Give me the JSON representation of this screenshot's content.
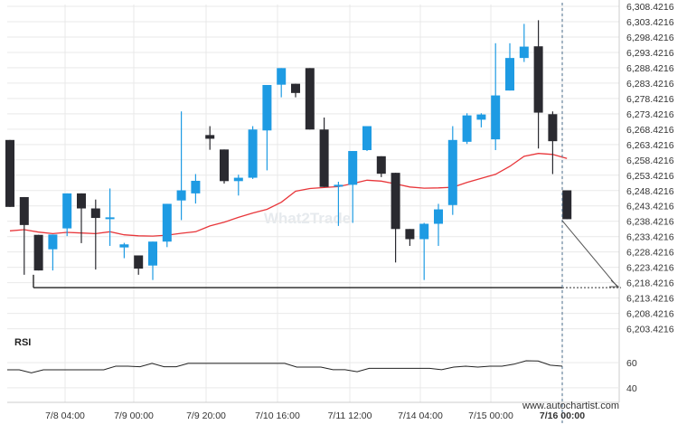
{
  "chart_data": {
    "type": "candlestick",
    "price_axis": {
      "ticks": [
        "6,308.4216",
        "6,303.4216",
        "6,298.4216",
        "6,293.4216",
        "6,288.4216",
        "6,283.4216",
        "6,278.4216",
        "6,273.4216",
        "6,268.4216",
        "6,263.4216",
        "6,258.4216",
        "6,253.4216",
        "6,248.4216",
        "6,243.4216",
        "6,238.4216",
        "6,233.4216",
        "6,228.4216",
        "6,223.4216",
        "6,218.4216",
        "6,213.4216",
        "6,208.4216",
        "6,203.4216"
      ],
      "range": [
        6200.5,
        6309.4
      ]
    },
    "time_axis": {
      "ticks": [
        "7/8 04:00",
        "7/9 00:00",
        "7/9 20:00",
        "7/10 16:00",
        "7/11 12:00",
        "7/14 04:00",
        "7/15 00:00",
        "7/16 00:00"
      ]
    },
    "colors": {
      "up": "#1e9be3",
      "down": "#2a2a30",
      "ma": "#e8363a",
      "support": "#333333",
      "rsi": "#222222",
      "grid": "#e9e9e9"
    },
    "candles": [
      {
        "o": 6264.9,
        "h": 6264.9,
        "l": 6243.1,
        "c": 6243.1
      },
      {
        "o": 6246.3,
        "h": 6246.3,
        "l": 6221.0,
        "c": 6237.2
      },
      {
        "o": 6234.0,
        "h": 6234.0,
        "l": 6222.4,
        "c": 6222.4
      },
      {
        "o": 6229.3,
        "h": 6234.1,
        "l": 6222.4,
        "c": 6234.1
      },
      {
        "o": 6236.1,
        "h": 6247.5,
        "l": 6233.6,
        "c": 6247.5
      },
      {
        "o": 6247.5,
        "h": 6247.5,
        "l": 6231.3,
        "c": 6242.6
      },
      {
        "o": 6242.6,
        "h": 6245.5,
        "l": 6222.7,
        "c": 6239.5
      },
      {
        "o": 6239.6,
        "h": 6249.1,
        "l": 6230.4,
        "c": 6239.7
      },
      {
        "o": 6229.9,
        "h": 6231.4,
        "l": 6226.4,
        "c": 6230.9
      },
      {
        "o": 6227.3,
        "h": 6227.3,
        "l": 6221.0,
        "c": 6223.0
      },
      {
        "o": 6224.0,
        "h": 6231.8,
        "l": 6219.3,
        "c": 6231.8
      },
      {
        "o": 6231.8,
        "h": 6244.1,
        "l": 6230.0,
        "c": 6244.1
      },
      {
        "o": 6245.2,
        "h": 6274.2,
        "l": 6238.8,
        "c": 6248.5
      },
      {
        "o": 6247.5,
        "h": 6253.8,
        "l": 6244.2,
        "c": 6251.6
      },
      {
        "o": 6266.5,
        "h": 6269.4,
        "l": 6261.7,
        "c": 6265.3
      },
      {
        "o": 6261.8,
        "h": 6261.8,
        "l": 6250.7,
        "c": 6251.5
      },
      {
        "o": 6251.5,
        "h": 6253.6,
        "l": 6246.8,
        "c": 6252.6
      },
      {
        "o": 6252.6,
        "h": 6269.4,
        "l": 6252.2,
        "c": 6268.3
      },
      {
        "o": 6268.0,
        "h": 6282.8,
        "l": 6255.0,
        "c": 6282.8
      },
      {
        "o": 6282.9,
        "h": 6288.3,
        "l": 6278.8,
        "c": 6288.3
      },
      {
        "o": 6283.2,
        "h": 6283.2,
        "l": 6278.8,
        "c": 6280.2
      },
      {
        "o": 6288.3,
        "h": 6288.3,
        "l": 6268.3,
        "c": 6268.3
      },
      {
        "o": 6268.3,
        "h": 6272.2,
        "l": 6249.6,
        "c": 6249.6
      },
      {
        "o": 6249.7,
        "h": 6251.3,
        "l": 6236.9,
        "c": 6250.3
      },
      {
        "o": 6250.3,
        "h": 6261.3,
        "l": 6237.9,
        "c": 6261.3
      },
      {
        "o": 6261.6,
        "h": 6269.4,
        "l": 6261.3,
        "c": 6269.4
      },
      {
        "o": 6259.6,
        "h": 6259.6,
        "l": 6252.8,
        "c": 6253.9
      },
      {
        "o": 6254.2,
        "h": 6254.2,
        "l": 6225.0,
        "c": 6235.9
      },
      {
        "o": 6235.9,
        "h": 6235.9,
        "l": 6230.4,
        "c": 6232.6
      },
      {
        "o": 6232.6,
        "h": 6237.9,
        "l": 6219.3,
        "c": 6237.6
      },
      {
        "o": 6237.6,
        "h": 6244.1,
        "l": 6230.4,
        "c": 6242.3
      },
      {
        "o": 6243.7,
        "h": 6269.4,
        "l": 6240.5,
        "c": 6264.9
      },
      {
        "o": 6264.3,
        "h": 6273.6,
        "l": 6263.6,
        "c": 6272.9
      },
      {
        "o": 6271.5,
        "h": 6273.6,
        "l": 6269.0,
        "c": 6273.2
      },
      {
        "o": 6265.1,
        "h": 6296.4,
        "l": 6261.6,
        "c": 6279.4
      },
      {
        "o": 6281.0,
        "h": 6296.4,
        "l": 6281.0,
        "c": 6291.6
      },
      {
        "o": 6291.6,
        "h": 6302.7,
        "l": 6290.3,
        "c": 6295.3
      },
      {
        "o": 6295.4,
        "h": 6303.9,
        "l": 6262.1,
        "c": 6273.8
      },
      {
        "o": 6273.3,
        "h": 6274.2,
        "l": 6253.8,
        "c": 6264.5
      },
      {
        "o": 6248.5,
        "h": 6248.5,
        "l": 6239.1,
        "c": 6239.1
      }
    ],
    "moving_average": [
      6235.3,
      6235.7,
      6234.9,
      6234.4,
      6234.8,
      6234.6,
      6234.4,
      6235.0,
      6234.0,
      6233.7,
      6233.6,
      6233.9,
      6234.5,
      6235.0,
      6236.9,
      6238.1,
      6239.7,
      6241.1,
      6242.3,
      6244.6,
      6248.2,
      6249.1,
      6249.4,
      6249.7,
      6250.7,
      6251.8,
      6251.5,
      6250.6,
      6249.6,
      6249.2,
      6249.3,
      6249.5,
      6251.1,
      6252.4,
      6253.7,
      6256.3,
      6259.6,
      6260.5,
      6260.2,
      6258.9
    ],
    "support": {
      "level": 6216.8,
      "label_on_axis": false
    },
    "forecast": {
      "from_price": 6238.6,
      "to_price": 6216.8
    },
    "rsi": {
      "title": "RSI",
      "ticks": [
        60,
        40
      ],
      "range": [
        32,
        68
      ],
      "values": [
        54.3,
        54.3,
        51.9,
        54.3,
        54.3,
        54.3,
        54.3,
        54.3,
        54.3,
        57.2,
        57.2,
        56.8,
        59.4,
        56.8,
        56.8,
        59.4,
        59.4,
        59.4,
        59.4,
        59.4,
        59.4,
        59.4,
        59.4,
        59.4,
        56.5,
        56.5,
        56.5,
        54.4,
        54.4,
        52.8,
        55.5,
        55.5,
        55.5,
        55.5,
        55.5,
        55.5,
        54.4,
        56.5,
        57.2,
        56.5,
        57.2,
        57.2,
        58.8,
        61.5,
        61.3,
        58.0,
        57.2
      ]
    },
    "watermark": "What2Trade",
    "credit": "www.autochartist.com"
  }
}
